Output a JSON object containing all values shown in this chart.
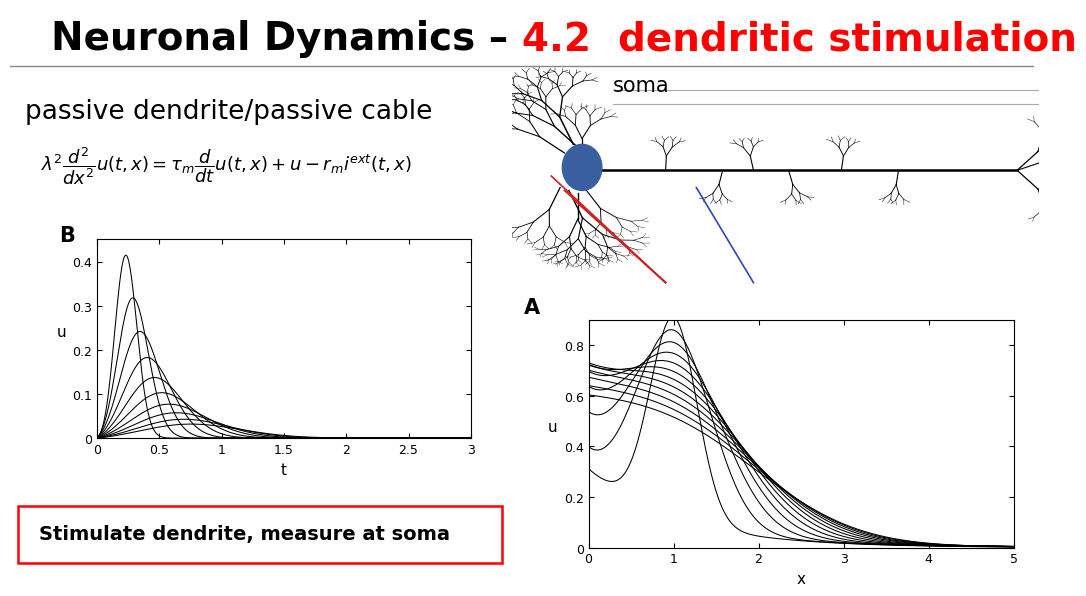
{
  "title_black": "Neuronal Dynamics – ",
  "title_red": "4.2  dendritic stimulation",
  "title_fontsize": 28,
  "bg_color": "#ffffff",
  "subtitle": "passive dendrite/passive cable",
  "subtitle_fontsize": 19,
  "equation": "$\\lambda^2 \\dfrac{d^2}{dx^2}u(t,x) = \\tau_m \\dfrac{d}{dt}u(t,x)+u-r_m i^{ext}(t,x)$",
  "equation_fontsize": 13,
  "label_B": "B",
  "label_A": "A",
  "box_text": "Stimulate dendrite, measure at soma",
  "soma_label": "soma",
  "plot_B_xlabel": "t",
  "plot_B_ylabel": "u",
  "plot_B_xlim": [
    0,
    3
  ],
  "plot_B_ylim": [
    0,
    0.45
  ],
  "plot_B_xticks": [
    0,
    0.5,
    1,
    1.5,
    2,
    2.5,
    3
  ],
  "plot_B_yticks": [
    0,
    0.1,
    0.2,
    0.3,
    0.4
  ],
  "plot_A_xlabel": "x",
  "plot_A_ylabel": "u",
  "plot_A_xlim": [
    0,
    5
  ],
  "plot_A_ylim": [
    0,
    0.9
  ],
  "plot_A_xticks": [
    0,
    1,
    2,
    3,
    4,
    5
  ],
  "plot_A_yticks": [
    0,
    0.2,
    0.4,
    0.6,
    0.8
  ],
  "num_curves_B": 10,
  "num_curves_A": 12,
  "soma_ellipse_color": "#3a5fa0",
  "red_line_color": "#cc2222",
  "blue_line_color": "#3344bb"
}
